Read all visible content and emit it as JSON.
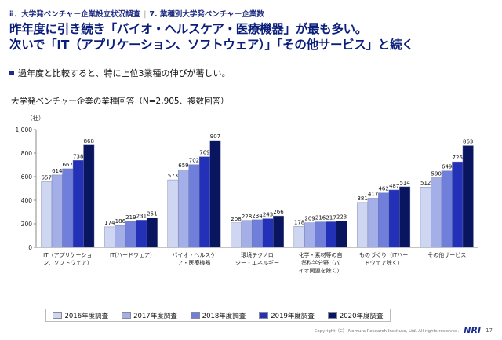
{
  "breadcrumb": {
    "section": "ⅱ．大学発ベンチャー企業設立状況調査",
    "page": "7. 業種別大学発ベンチャー企業数"
  },
  "headline": {
    "line1": "昨年度に引き続き「バイオ・ヘルスケア・医療機器」が最も多い。",
    "line2": "次いで「IT（アプリケーション、ソフトウェア）」「その他サービス」と続く"
  },
  "bullet_text": "過年度と比較すると、特に上位3業種の伸びが著しい。",
  "footer": {
    "copyright": "Copyright（C） Nomura Research Institute, Ltd. All rights reserved.",
    "logo": "NRI",
    "page_number": "17"
  },
  "colors": {
    "series": [
      "#cfd6f2",
      "#a3afe6",
      "#6f7fda",
      "#2330b8",
      "#0a1560"
    ],
    "brand": "#1a2b8c"
  },
  "chart_data": {
    "type": "bar",
    "title": "大学発ベンチャー企業の業種回答（N=2,905、複数回答）",
    "ylabel": "（社）",
    "ylim": [
      0,
      1000
    ],
    "yticks": [
      "0",
      "200",
      "400",
      "600",
      "800",
      "1,000"
    ],
    "grid": false,
    "legend_position": "bottom",
    "categories": [
      [
        "IT（アプリケーショ",
        "ン、ソフトウェア）"
      ],
      [
        "IT(ハードウェア)"
      ],
      [
        "バイオ・ヘルスケ",
        "ア・医療機器"
      ],
      [
        "環境テクノロ",
        "ジー・エネルギー"
      ],
      [
        "化学・素材等の自",
        "然科学分野（バ",
        "イオ関連を除く）"
      ],
      [
        "ものづくり（ITハー",
        "ドウェア除く）"
      ],
      [
        "その他サービス"
      ]
    ],
    "series": [
      {
        "name": "2016年度調査",
        "values": [
          557,
          174,
          573,
          208,
          178,
          381,
          512
        ]
      },
      {
        "name": "2017年度調査",
        "values": [
          614,
          186,
          659,
          228,
          209,
          417,
          590
        ]
      },
      {
        "name": "2018年度調査",
        "values": [
          667,
          219,
          702,
          234,
          216,
          462,
          649
        ]
      },
      {
        "name": "2019年度調査",
        "values": [
          738,
          231,
          769,
          243,
          217,
          487,
          726
        ]
      },
      {
        "name": "2020年度調査",
        "values": [
          868,
          251,
          907,
          266,
          223,
          514,
          863
        ]
      }
    ]
  }
}
